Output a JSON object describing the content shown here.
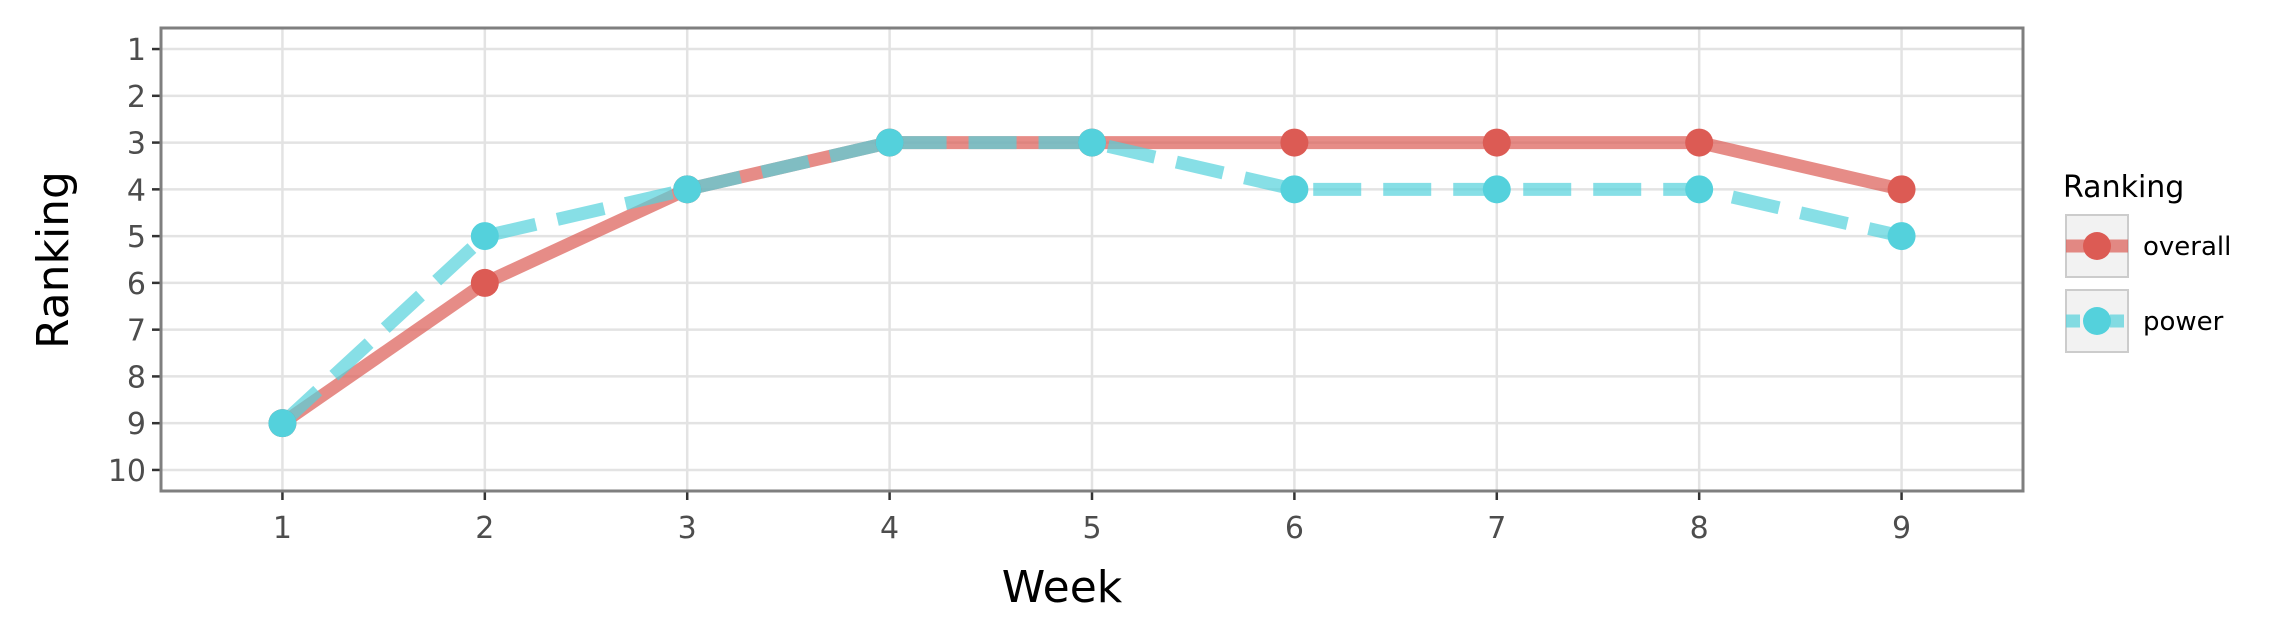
{
  "chart_data": {
    "type": "line",
    "xlabel": "Week",
    "ylabel": "Ranking",
    "x": [
      1,
      2,
      3,
      4,
      5,
      6,
      7,
      8,
      9
    ],
    "x_tick_labels": [
      "1",
      "2",
      "3",
      "4",
      "5",
      "6",
      "7",
      "8",
      "9"
    ],
    "y_tick_labels": [
      "1",
      "2",
      "3",
      "4",
      "5",
      "6",
      "7",
      "8",
      "9",
      "10"
    ],
    "y_ticks": [
      1,
      2,
      3,
      4,
      5,
      6,
      7,
      8,
      9,
      10
    ],
    "xlim": [
      0.4,
      9.6
    ],
    "ylim": [
      0.55,
      10.45
    ],
    "y_reversed": true,
    "grid": true,
    "legend_position": "right",
    "legend_title": "Ranking",
    "series": [
      {
        "name": "overall",
        "values": [
          9,
          6,
          4,
          3,
          3,
          3,
          3,
          3,
          4
        ],
        "color": "#dc5b54",
        "linestyle": "solid"
      },
      {
        "name": "power",
        "values": [
          9,
          5,
          4,
          3,
          3,
          4,
          4,
          4,
          5
        ],
        "color": "#54d1dc",
        "linestyle": "dashed"
      }
    ]
  }
}
